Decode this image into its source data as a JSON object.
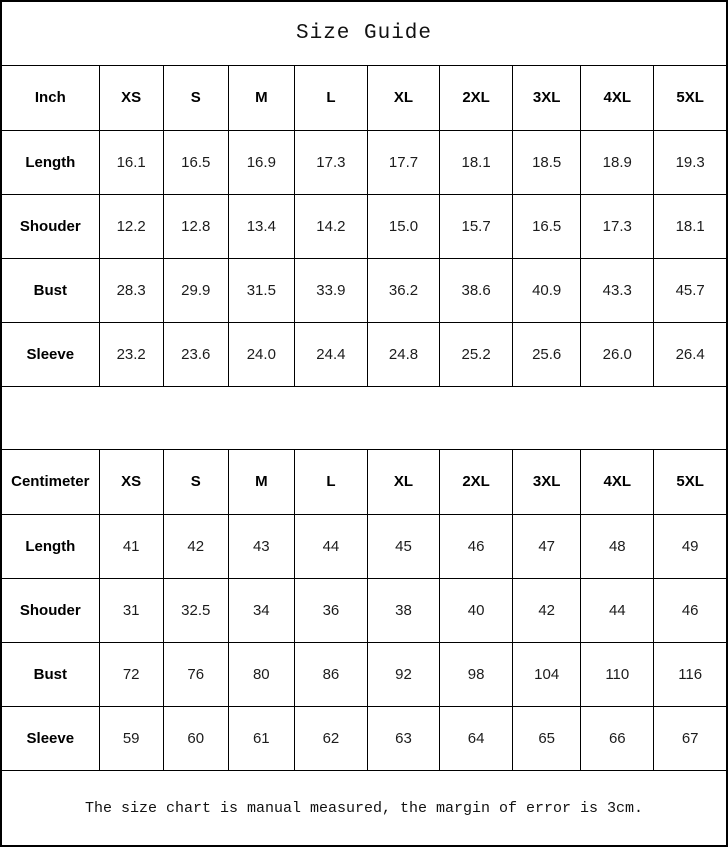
{
  "title": "Size Guide",
  "footer_note": "The size chart is manual measured, the margin of error is 3cm.",
  "colors": {
    "border": "#000000",
    "text": "#000000",
    "background": "#ffffff"
  },
  "chart_data": {
    "type": "table",
    "title": "Size Guide",
    "tables": [
      {
        "unit_label": "Inch",
        "columns": [
          "XS",
          "S",
          "M",
          "L",
          "XL",
          "2XL",
          "3XL",
          "4XL",
          "5XL"
        ],
        "rows": [
          {
            "label": "Length",
            "values": [
              "16.1",
              "16.5",
              "16.9",
              "17.3",
              "17.7",
              "18.1",
              "18.5",
              "18.9",
              "19.3"
            ]
          },
          {
            "label": "Shouder",
            "values": [
              "12.2",
              "12.8",
              "13.4",
              "14.2",
              "15.0",
              "15.7",
              "16.5",
              "17.3",
              "18.1"
            ]
          },
          {
            "label": "Bust",
            "values": [
              "28.3",
              "29.9",
              "31.5",
              "33.9",
              "36.2",
              "38.6",
              "40.9",
              "43.3",
              "45.7"
            ]
          },
          {
            "label": "Sleeve",
            "values": [
              "23.2",
              "23.6",
              "24.0",
              "24.4",
              "24.8",
              "25.2",
              "25.6",
              "26.0",
              "26.4"
            ]
          }
        ]
      },
      {
        "unit_label": "Centimeter",
        "columns": [
          "XS",
          "S",
          "M",
          "L",
          "XL",
          "2XL",
          "3XL",
          "4XL",
          "5XL"
        ],
        "rows": [
          {
            "label": "Length",
            "values": [
              "41",
              "42",
              "43",
              "44",
              "45",
              "46",
              "47",
              "48",
              "49"
            ]
          },
          {
            "label": "Shouder",
            "values": [
              "31",
              "32.5",
              "34",
              "36",
              "38",
              "40",
              "42",
              "44",
              "46"
            ]
          },
          {
            "label": "Bust",
            "values": [
              "72",
              "76",
              "80",
              "86",
              "92",
              "98",
              "104",
              "110",
              "116"
            ]
          },
          {
            "label": "Sleeve",
            "values": [
              "59",
              "60",
              "61",
              "62",
              "63",
              "64",
              "65",
              "66",
              "67"
            ]
          }
        ]
      }
    ]
  }
}
